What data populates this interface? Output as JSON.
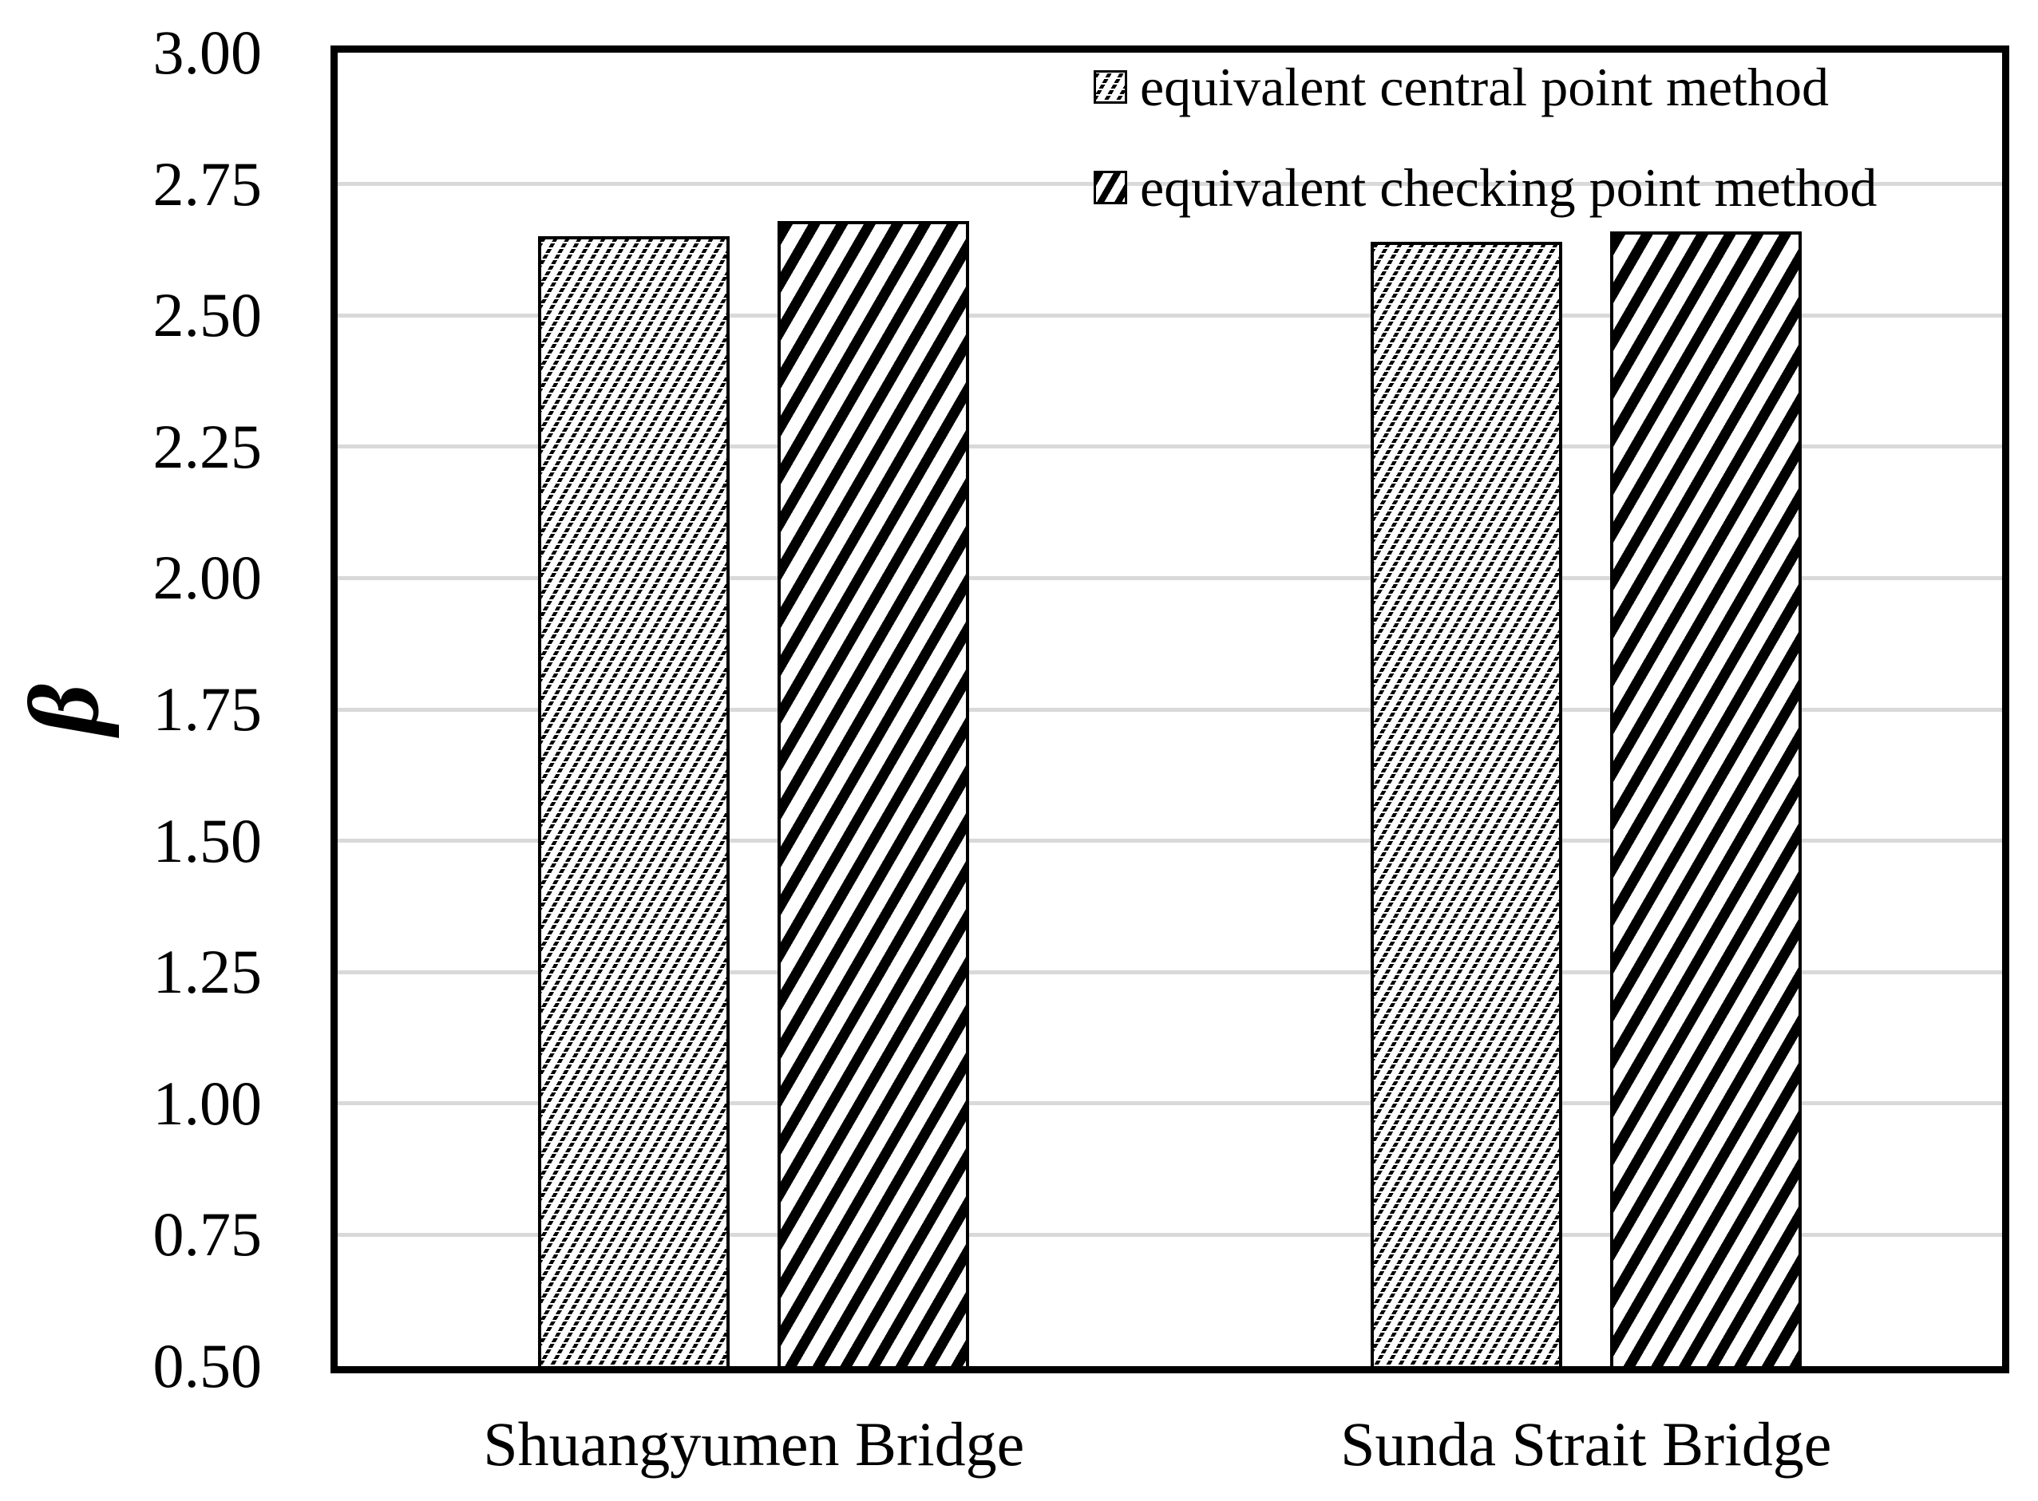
{
  "figure": {
    "background": "#ffffff",
    "axis_border_color": "#000000",
    "gridline_color": "#d9d9d9",
    "bar_fill_color": "#000000"
  },
  "y_axis": {
    "title": "β",
    "tick_labels": [
      "3.00",
      "2.75",
      "2.50",
      "2.25",
      "2.00",
      "1.75",
      "1.50",
      "1.25",
      "1.00",
      "0.75",
      "0.50"
    ]
  },
  "x_axis": {
    "categories": [
      "Shuangyumen Bridge",
      "Sunda Strait Bridge"
    ]
  },
  "legend": {
    "items": [
      {
        "label": "equivalent central point method",
        "swatch_icon": "light-upward-diagonal-hatch-icon"
      },
      {
        "label": "equivalent checking point method",
        "swatch_icon": "wide-upward-diagonal-hatch-icon"
      }
    ]
  },
  "chart_data": {
    "type": "bar",
    "title": "",
    "xlabel": "",
    "ylabel": "β",
    "categories": [
      "Shuangyumen Bridge",
      "Sunda Strait Bridge"
    ],
    "series": [
      {
        "name": "equivalent central point method",
        "hatch": "light-upward-diagonal",
        "values": [
          2.65,
          2.64
        ]
      },
      {
        "name": "equivalent checking point method",
        "hatch": "wide-upward-diagonal",
        "values": [
          2.68,
          2.66
        ]
      }
    ],
    "ylim": [
      0.5,
      3.0
    ],
    "ytick_step": 0.25,
    "grid": "horizontal",
    "legend_position": "top-right-inside"
  }
}
